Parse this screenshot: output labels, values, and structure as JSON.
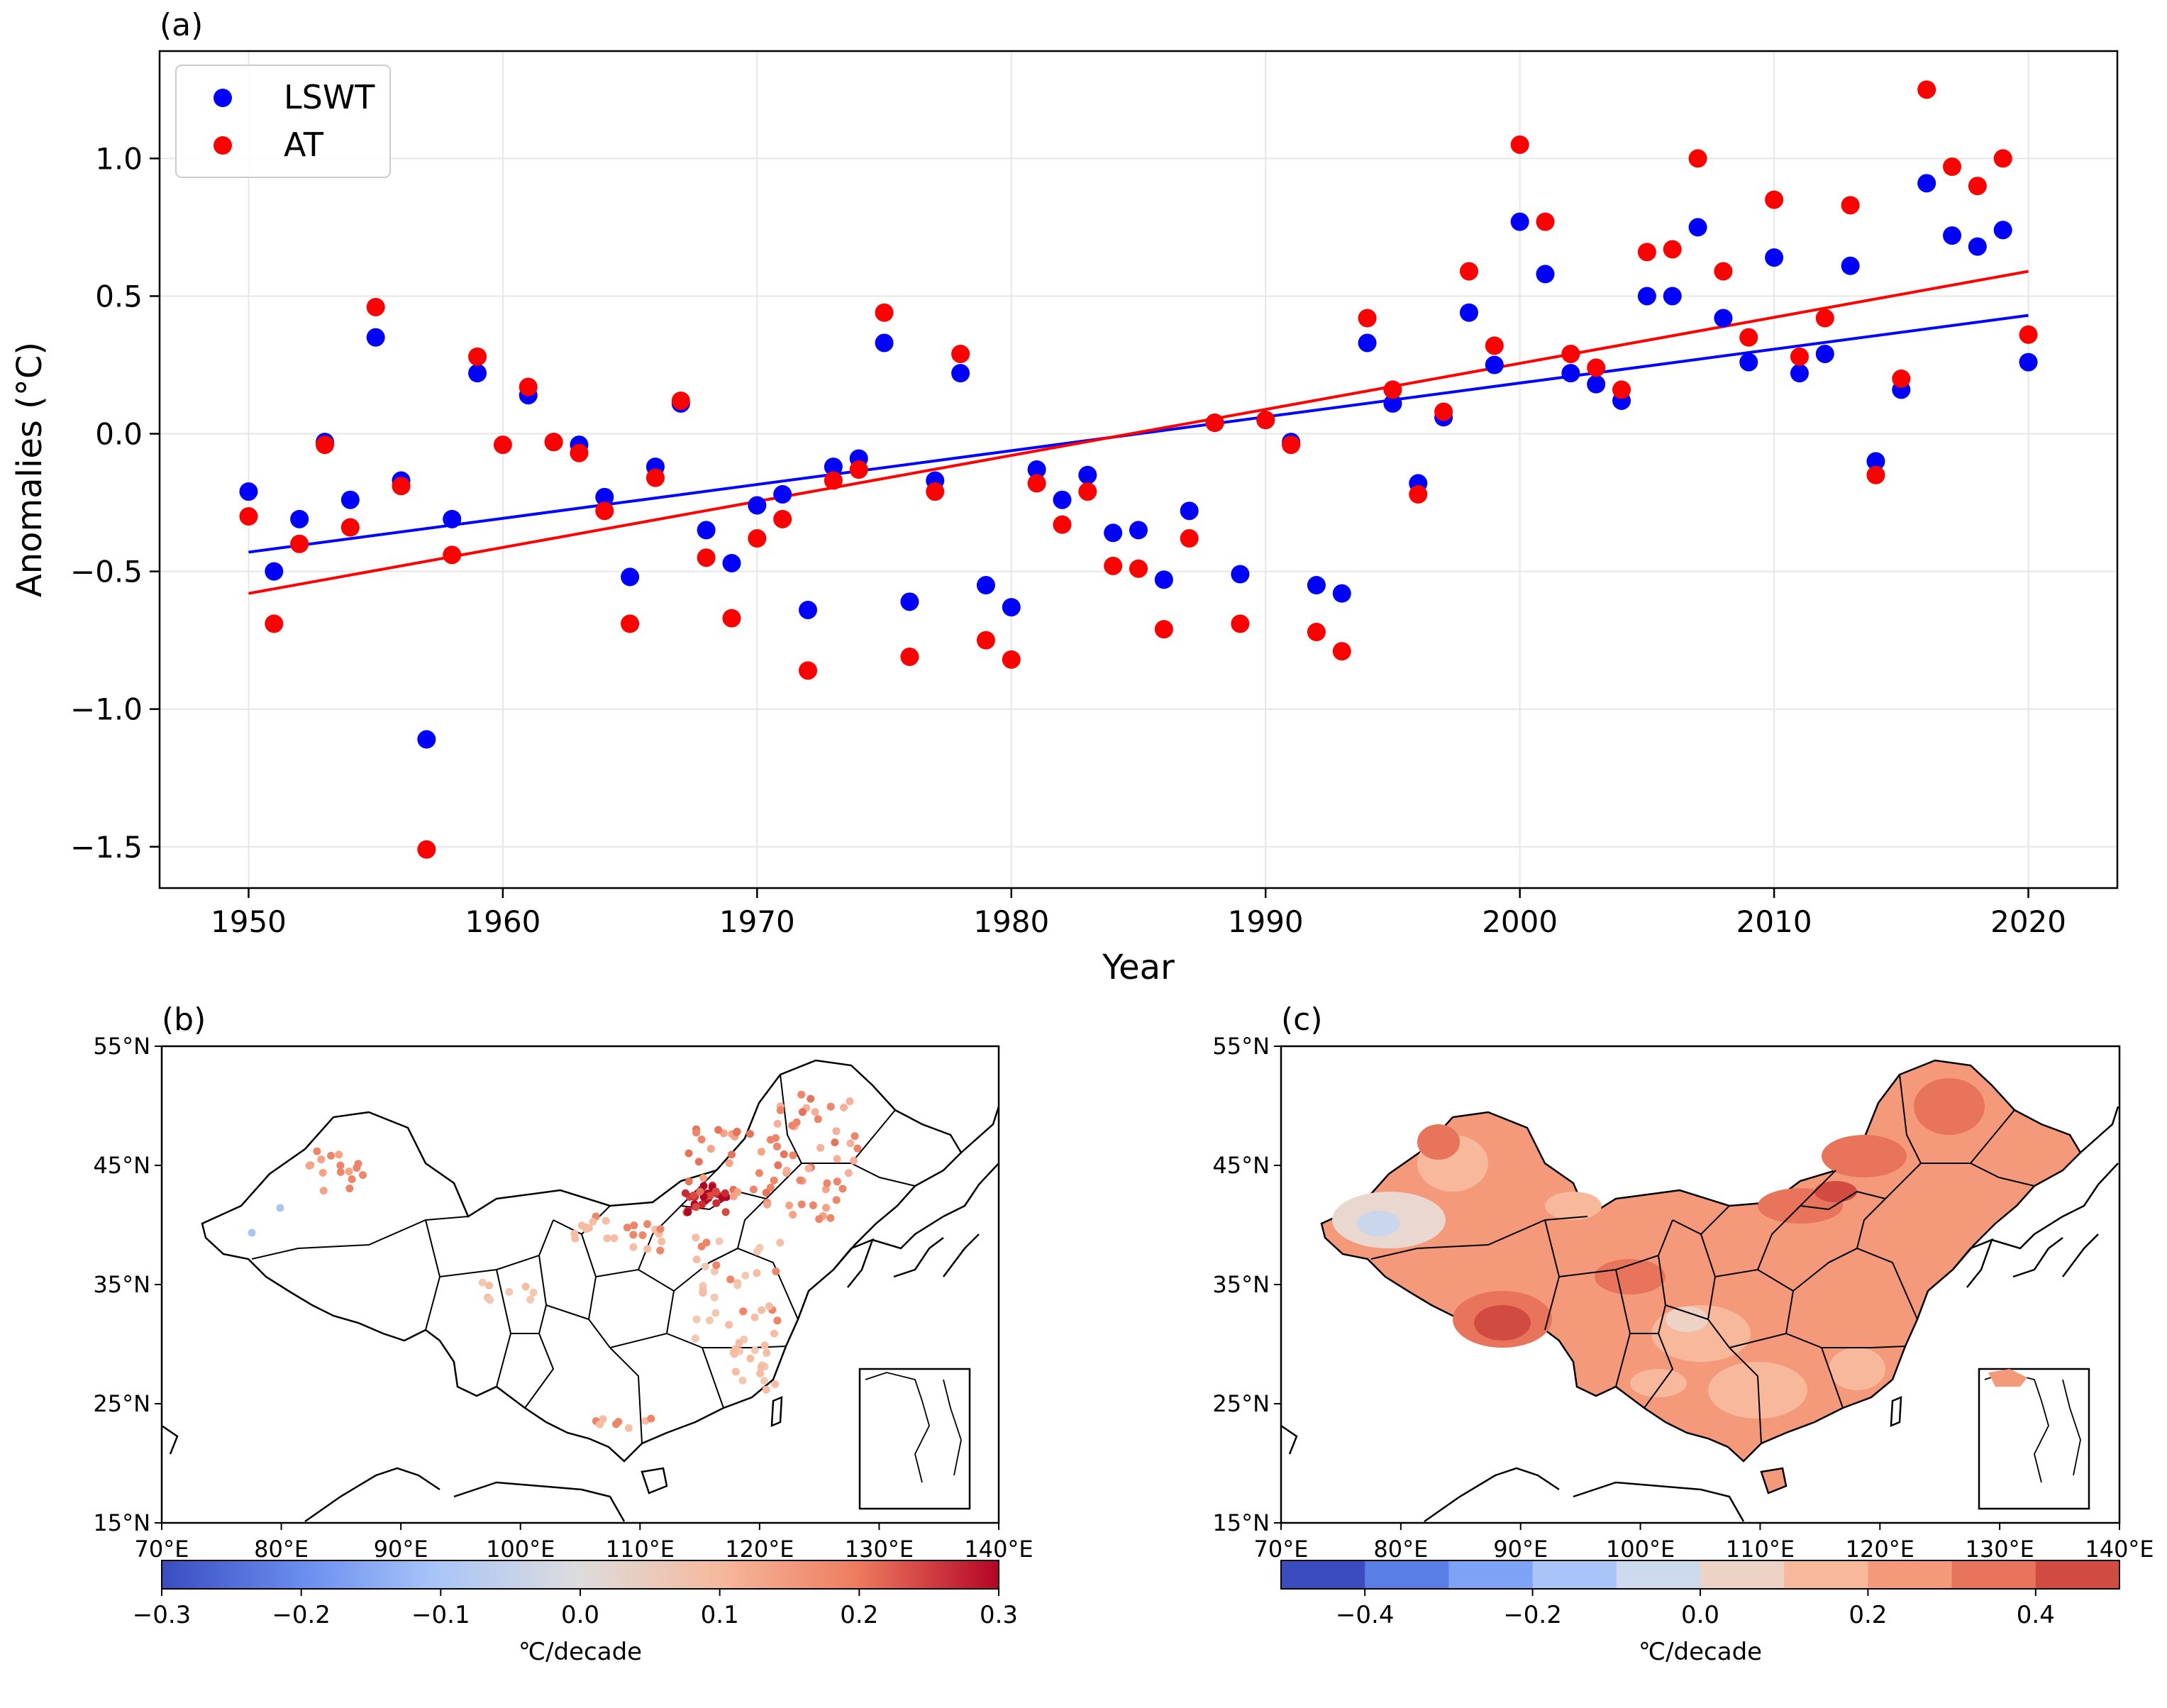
{
  "chart_data": [
    {
      "panel_label": "(a)",
      "type": "scatter",
      "xlabel": "Year",
      "ylabel": "Anomalies (°C)",
      "xlim": [
        1946.5,
        2023.5
      ],
      "ylim": [
        -1.65,
        1.39
      ],
      "xticks": [
        "1950",
        "1960",
        "1970",
        "1980",
        "1990",
        "2000",
        "2010",
        "2020"
      ],
      "yticks": [
        "−1.5",
        "−1.0",
        "−0.5",
        "0.0",
        "0.5",
        "1.0"
      ],
      "grid": true,
      "legend": "top-left",
      "x": [
        1950,
        1951,
        1952,
        1953,
        1954,
        1955,
        1956,
        1957,
        1958,
        1959,
        1960,
        1961,
        1962,
        1963,
        1964,
        1965,
        1966,
        1967,
        1968,
        1969,
        1970,
        1971,
        1972,
        1973,
        1974,
        1975,
        1976,
        1977,
        1978,
        1979,
        1980,
        1981,
        1982,
        1983,
        1984,
        1985,
        1986,
        1987,
        1988,
        1989,
        1990,
        1991,
        1992,
        1993,
        1994,
        1995,
        1996,
        1997,
        1998,
        1999,
        2000,
        2001,
        2002,
        2003,
        2004,
        2005,
        2006,
        2007,
        2008,
        2009,
        2010,
        2011,
        2012,
        2013,
        2014,
        2015,
        2016,
        2017,
        2018,
        2019,
        2020
      ],
      "series": [
        {
          "name": "LSWT",
          "color": "#0000ff",
          "values": [
            -0.21,
            -0.5,
            -0.31,
            -0.03,
            -0.24,
            0.35,
            -0.17,
            -1.11,
            -0.31,
            0.22,
            null,
            0.14,
            -0.03,
            -0.04,
            -0.23,
            -0.52,
            -0.12,
            0.11,
            -0.35,
            -0.47,
            -0.26,
            -0.22,
            -0.64,
            -0.12,
            -0.09,
            0.33,
            -0.61,
            -0.17,
            0.22,
            -0.55,
            -0.63,
            -0.13,
            -0.24,
            -0.15,
            -0.36,
            -0.35,
            -0.53,
            -0.28,
            0.04,
            -0.51,
            0.05,
            -0.03,
            -0.55,
            -0.58,
            0.33,
            0.11,
            -0.18,
            0.06,
            0.44,
            0.25,
            0.77,
            0.58,
            0.22,
            0.18,
            0.12,
            0.5,
            0.5,
            0.75,
            0.42,
            0.26,
            0.64,
            0.22,
            0.29,
            0.61,
            -0.1,
            0.16,
            0.91,
            0.72,
            0.68,
            0.74,
            0.26
          ],
          "trend": [
            -0.43,
            0.43
          ]
        },
        {
          "name": "AT",
          "color": "#ff0000",
          "values": [
            -0.3,
            -0.69,
            -0.4,
            -0.04,
            -0.34,
            0.46,
            -0.19,
            -1.51,
            -0.44,
            0.28,
            -0.04,
            0.17,
            -0.03,
            -0.07,
            -0.28,
            -0.69,
            -0.16,
            0.12,
            -0.45,
            -0.67,
            -0.38,
            -0.31,
            -0.86,
            -0.17,
            -0.13,
            0.44,
            -0.81,
            -0.21,
            0.29,
            -0.75,
            -0.82,
            -0.18,
            -0.33,
            -0.21,
            -0.48,
            -0.49,
            -0.71,
            -0.38,
            0.04,
            -0.69,
            0.05,
            -0.04,
            -0.72,
            -0.79,
            0.42,
            0.16,
            -0.22,
            0.08,
            0.59,
            0.32,
            1.05,
            0.77,
            0.29,
            0.24,
            0.16,
            0.66,
            0.67,
            1.0,
            0.59,
            0.35,
            0.85,
            0.28,
            0.42,
            0.83,
            -0.15,
            0.2,
            1.25,
            0.97,
            0.9,
            1.0,
            0.36
          ],
          "trend": [
            -0.58,
            0.59
          ]
        }
      ]
    },
    {
      "panel_label": "(b)",
      "type": "map",
      "lon_ticks": [
        "70°E",
        "80°E",
        "90°E",
        "100°E",
        "110°E",
        "120°E",
        "130°E",
        "140°E"
      ],
      "lat_ticks": [
        "15°N",
        "25°N",
        "35°N",
        "45°N",
        "55°N"
      ],
      "colorbar": {
        "label": "℃/decade",
        "ticks": [
          "−0.3",
          "−0.2",
          "−0.1",
          "0.0",
          "0.1",
          "0.2",
          "0.3"
        ],
        "range": [
          -0.3,
          0.3
        ],
        "colors": [
          "#3a4cc0",
          "#7b9ff9",
          "#c0d4f5",
          "#dddcdc",
          "#f6bda2",
          "#ee8468",
          "#b40426"
        ]
      }
    },
    {
      "panel_label": "(c)",
      "type": "map",
      "lon_ticks": [
        "70°E",
        "80°E",
        "90°E",
        "100°E",
        "110°E",
        "120°E",
        "130°E",
        "140°E"
      ],
      "lat_ticks": [
        "15°N",
        "25°N",
        "35°N",
        "45°N",
        "55°N"
      ],
      "colorbar": {
        "label": "℃/decade",
        "ticks": [
          "−0.4",
          "−0.2",
          "0.0",
          "0.2",
          "0.4"
        ],
        "range": [
          -0.5,
          0.5
        ],
        "colors": [
          "#3a4cc0",
          "#5a80e8",
          "#7ea3f6",
          "#a8c4f8",
          "#cdd9ec",
          "#ecd3c5",
          "#f7b89c",
          "#f49a7b",
          "#e7745b",
          "#d24b40"
        ]
      }
    }
  ]
}
